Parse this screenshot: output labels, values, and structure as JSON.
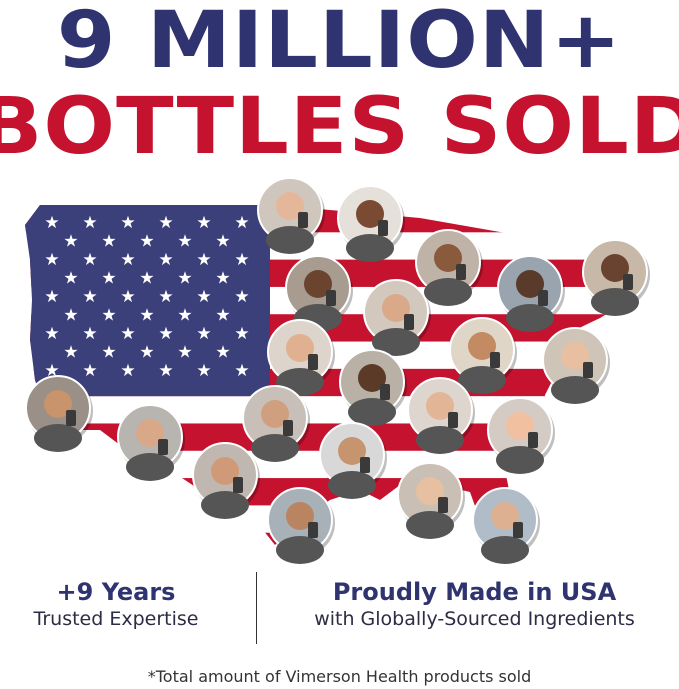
{
  "headline": {
    "line1": "9 MILLION+",
    "line2": "BOTTLES SOLD"
  },
  "stats": [
    {
      "title": "+9 Years",
      "subtitle": "Trusted Expertise"
    },
    {
      "title": "Proudly Made in USA",
      "subtitle": "with Globally-Sourced Ingredients"
    }
  ],
  "footnote": "*Total amount of Vimerson Health products sold",
  "colors": {
    "navy": "#2f3470",
    "red": "#c4122f",
    "flag_blue": "#3b3f7a"
  }
}
